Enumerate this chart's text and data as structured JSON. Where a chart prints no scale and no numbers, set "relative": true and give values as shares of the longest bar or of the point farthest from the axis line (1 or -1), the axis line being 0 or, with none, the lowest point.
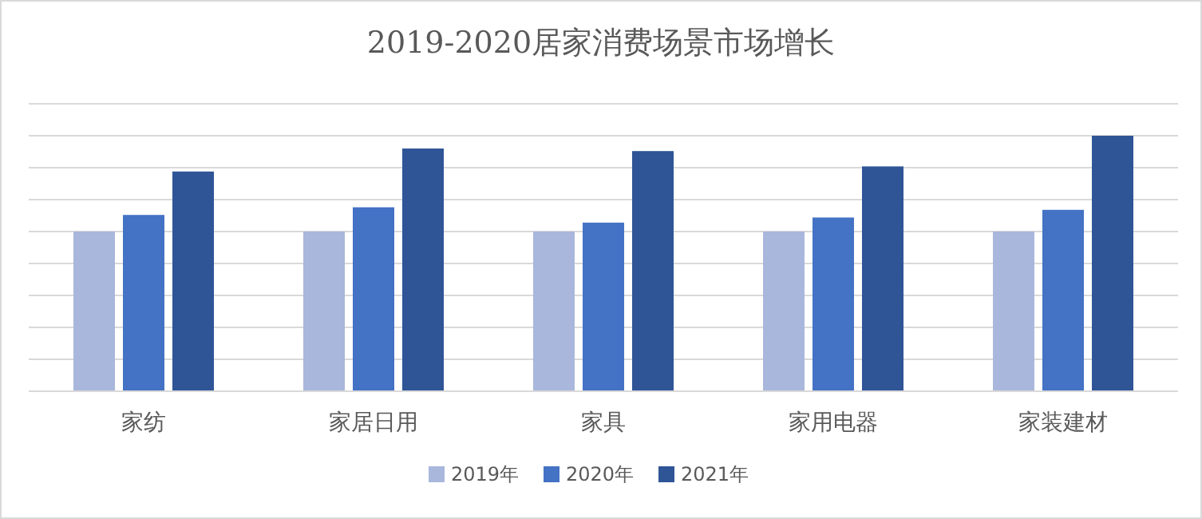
{
  "chart_data": {
    "type": "bar",
    "title": "2019-2020居家消费场景市场增长",
    "categories": [
      "家纺",
      "家居日用",
      "家具",
      "家用电器",
      "家装建材"
    ],
    "relative": true,
    "grid": "y",
    "legend": "bottom",
    "series": [
      {
        "name": "2019年",
        "color": "#a9b7dc",
        "values": [
          0.625,
          0.625,
          0.625,
          0.625,
          0.625
        ]
      },
      {
        "name": "2020年",
        "color": "#4472c4",
        "values": [
          0.69,
          0.72,
          0.66,
          0.68,
          0.71
        ]
      },
      {
        "name": "2021年",
        "color": "#2f5597",
        "values": [
          0.86,
          0.95,
          0.94,
          0.88,
          1
        ]
      }
    ]
  }
}
